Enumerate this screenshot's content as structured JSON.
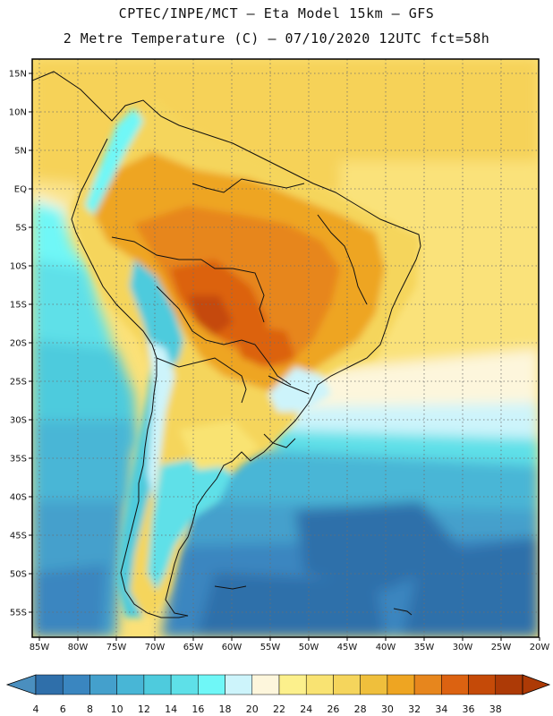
{
  "header": {
    "title_line1": "CPTEC/INPE/MCT –  Eta Model 15km – GFS",
    "title_line2": "2 Metre Temperature (C) – 07/10/2020 12UTC fct=58h"
  },
  "map": {
    "region": "South America",
    "variable": "2 Metre Temperature",
    "units": "C",
    "lat_labels": [
      "15N",
      "10N",
      "5N",
      "EQ",
      "5S",
      "10S",
      "15S",
      "20S",
      "25S",
      "30S",
      "35S",
      "40S",
      "45S",
      "50S",
      "55S"
    ],
    "lon_labels": [
      "85W",
      "80W",
      "75W",
      "70W",
      "65W",
      "60W",
      "55W",
      "50W",
      "45W",
      "40W",
      "35W",
      "30W",
      "25W",
      "20W"
    ]
  },
  "colorbar": {
    "labels": [
      "4",
      "6",
      "8",
      "10",
      "12",
      "14",
      "16",
      "18",
      "20",
      "22",
      "24",
      "26",
      "28",
      "30",
      "32",
      "34",
      "36",
      "38"
    ],
    "colors": [
      "#4a8fbf",
      "#2f6faa",
      "#3a86c0",
      "#44a0cc",
      "#48b6d6",
      "#4ecbdd",
      "#5ee0e8",
      "#6ff7f7",
      "#cdf4fb",
      "#fdf6dc",
      "#fcf08c",
      "#f9e372",
      "#f5d55c",
      "#efbf3c",
      "#eea522",
      "#e7861d",
      "#dc6211",
      "#c54a08",
      "#ad3a06"
    ]
  }
}
